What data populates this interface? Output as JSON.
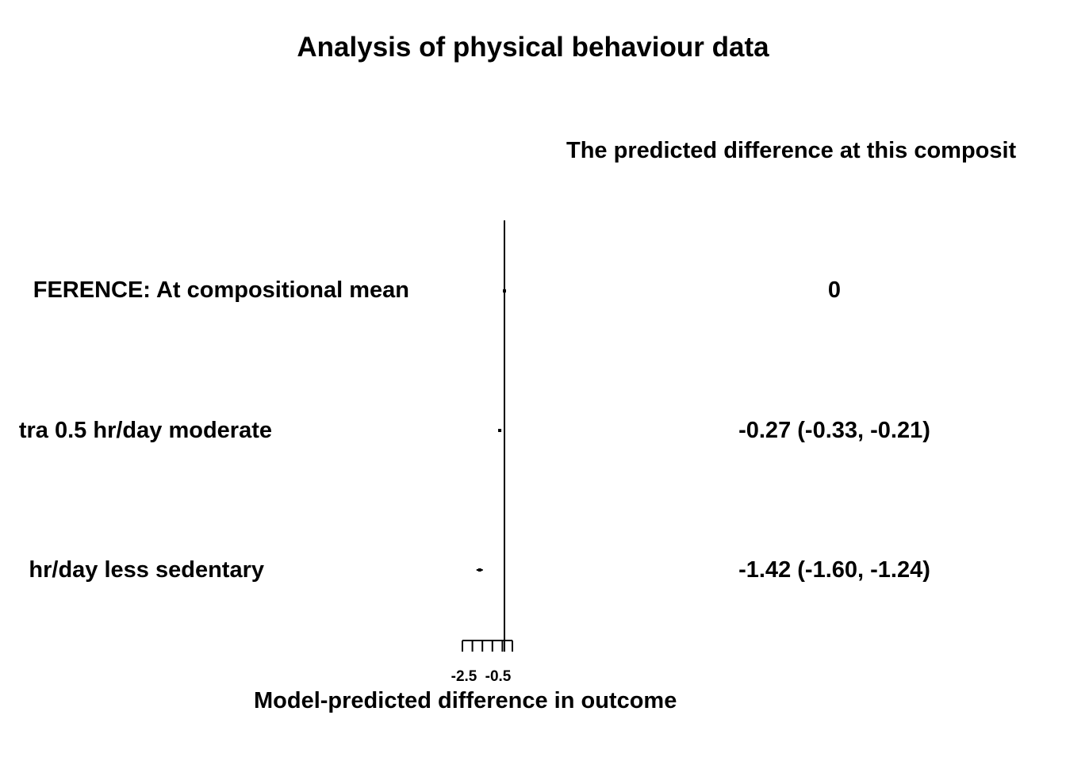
{
  "title": "Analysis of physical behaviour data",
  "column_header": "The predicted difference at this composit",
  "chart_data": {
    "type": "forest",
    "title": "Analysis of physical behaviour data",
    "xlabel": "Model-predicted difference in outcome",
    "ylabel": "",
    "xlim": [
      -2.5,
      0.0
    ],
    "x_ticks": [
      -2.5,
      -2.0,
      -1.5,
      -1.0,
      -0.5,
      0.0
    ],
    "x_tick_labels": [
      "-2.5",
      "-0.5"
    ],
    "reference_line": 0,
    "rows": [
      {
        "label": "FERENCE: At compositional mean",
        "estimate": 0,
        "lower": 0,
        "upper": 0,
        "value_text": "0"
      },
      {
        "label": "tra 0.5 hr/day moderate",
        "estimate": -0.27,
        "lower": -0.33,
        "upper": -0.21,
        "value_text": "-0.27 (-0.33, -0.21)"
      },
      {
        "label": " hr/day less sedentary",
        "estimate": -1.42,
        "lower": -1.6,
        "upper": -1.24,
        "value_text": "-1.42 (-1.60, -1.24)"
      }
    ]
  }
}
